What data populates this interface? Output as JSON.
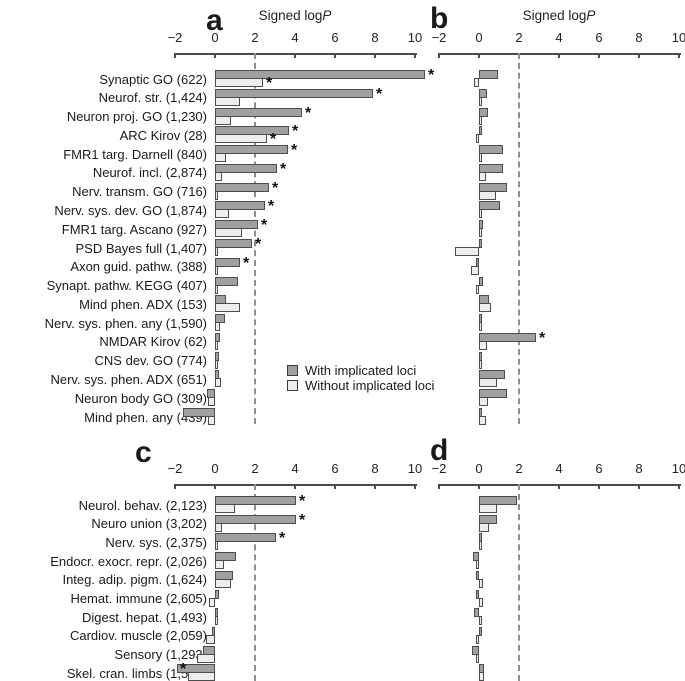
{
  "figure": {
    "panel_labels": {
      "a": "a",
      "b": "b",
      "c": "c",
      "d": "d"
    },
    "axis_title": "Signed logP"
  },
  "legend": {
    "with_label": "With implicated loci",
    "without_label": "Without implicated loci",
    "with_color": "#a0a0a0",
    "without_color": "#ededed",
    "border_color": "#4d4d4d",
    "threshold_line_color": "#8f8f8f"
  },
  "chart_data": [
    {
      "panel": "a",
      "type": "bar",
      "orientation": "horizontal",
      "xlabel": "Signed logP",
      "xlim": [
        -2,
        10
      ],
      "xticks": [
        -2,
        0,
        2,
        4,
        6,
        8,
        10
      ],
      "threshold_x": 2,
      "grid": false,
      "categories": [
        "Synaptic GO (622)",
        "Neurof. str. (1,424)",
        "Neuron proj. GO (1,230)",
        "ARC Kirov (28)",
        "FMR1 targ. Darnell (840)",
        "Neurof. incl. (2,874)",
        "Nerv. transm. GO (716)",
        "Nerv. sys. dev. GO (1,874)",
        "FMR1 targ. Ascano (927)",
        "PSD Bayes full (1,407)",
        "Axon guid. pathw. (388)",
        "Synapt. pathw. KEGG (407)",
        "Mind phen. ADX (153)",
        "Nerv. sys. phen. any (1,590)",
        "NMDAR Kirov (62)",
        "CNS dev. GO (774)",
        "Nerv. sys. phen. ADX (651)",
        "Neuron body GO (309)",
        "Mind phen. any (439)"
      ],
      "series": [
        {
          "name": "With implicated loci",
          "values": [
            10.5,
            7.9,
            4.35,
            3.7,
            3.65,
            3.1,
            2.7,
            2.5,
            2.15,
            1.85,
            1.25,
            1.15,
            0.55,
            0.5,
            0.25,
            0.2,
            0.2,
            -0.4,
            -1.6
          ],
          "stars": [
            true,
            true,
            true,
            true,
            true,
            true,
            true,
            true,
            true,
            true,
            true,
            false,
            false,
            false,
            false,
            false,
            false,
            false,
            false
          ]
        },
        {
          "name": "Without implicated loci",
          "values": [
            2.4,
            1.25,
            0.8,
            2.6,
            0.55,
            0.35,
            0.15,
            0.7,
            1.35,
            0.15,
            0.1,
            0.1,
            1.25,
            0.25,
            0.15,
            0.05,
            0.3,
            -0.35,
            -0.35
          ],
          "stars": [
            true,
            false,
            false,
            true,
            false,
            false,
            false,
            false,
            false,
            false,
            false,
            false,
            false,
            false,
            false,
            false,
            false,
            false,
            false
          ]
        }
      ]
    },
    {
      "panel": "b",
      "type": "bar",
      "orientation": "horizontal",
      "xlabel": "Signed logP",
      "xlim": [
        -2,
        10
      ],
      "xticks": [
        -2,
        0,
        2,
        4,
        6,
        8,
        10
      ],
      "threshold_x": 2,
      "grid": false,
      "categories": [
        "Synaptic GO (622)",
        "Neurof. str. (1,424)",
        "Neuron proj. GO (1,230)",
        "ARC Kirov (28)",
        "FMR1 targ. Darnell (840)",
        "Neurof. incl. (2,874)",
        "Nerv. transm. GO (716)",
        "Nerv. sys. dev. GO (1,874)",
        "FMR1 targ. Ascano (927)",
        "PSD Bayes full (1,407)",
        "Axon guid. pathw. (388)",
        "Synapt. pathw. KEGG (407)",
        "Mind phen. ADX (153)",
        "Nerv. sys. phen. any (1,590)",
        "NMDAR Kirov (62)",
        "CNS dev. GO (774)",
        "Nerv. sys. phen. ADX (651)",
        "Neuron body GO (309)",
        "Mind phen. any (439)"
      ],
      "series": [
        {
          "name": "With implicated loci",
          "values": [
            0.95,
            0.4,
            0.45,
            0.05,
            1.2,
            1.2,
            1.4,
            1.05,
            0.2,
            0.1,
            -0.1,
            0.2,
            0.5,
            0.1,
            2.85,
            0.15,
            1.3,
            1.4,
            0.15
          ],
          "stars": [
            false,
            false,
            false,
            false,
            false,
            false,
            false,
            false,
            false,
            false,
            false,
            false,
            false,
            false,
            true,
            false,
            false,
            false,
            false
          ]
        },
        {
          "name": "Without implicated loci",
          "values": [
            -0.25,
            0.05,
            0.05,
            -0.05,
            0.05,
            0.35,
            0.85,
            0.15,
            0.15,
            -1.2,
            -0.4,
            -0.05,
            0.6,
            0.1,
            0.4,
            0.05,
            0.9,
            0.45,
            0.35
          ],
          "stars": [
            false,
            false,
            false,
            false,
            false,
            false,
            false,
            false,
            false,
            false,
            false,
            false,
            false,
            false,
            false,
            false,
            false,
            false,
            false
          ]
        }
      ]
    },
    {
      "panel": "c",
      "type": "bar",
      "orientation": "horizontal",
      "xlabel": "",
      "xlim": [
        -2,
        10
      ],
      "xticks": [
        -2,
        0,
        2,
        4,
        6,
        8,
        10
      ],
      "threshold_x": 2,
      "grid": false,
      "categories": [
        "Neurol. behav. (2,123)",
        "Neuro union (3,202)",
        "Nerv. sys. (2,375)",
        "Endocr. exocr. repr. (2,026)",
        "Integ. adip. pigm. (1,624)",
        "Hemat. immune (2,605)",
        "Digest. hepat. (1,493)",
        "Cardiov. muscle (2,059)",
        "Sensory (1,293)",
        "Skel. cran. limbs (1,588)"
      ],
      "series": [
        {
          "name": "With implicated loci",
          "values": [
            4.05,
            4.05,
            3.05,
            1.05,
            0.9,
            0.2,
            0.15,
            -0.05,
            -0.6,
            -1.9
          ],
          "stars": [
            true,
            true,
            true,
            false,
            false,
            false,
            false,
            false,
            false,
            true
          ]
        },
        {
          "name": "Without implicated loci",
          "values": [
            1.0,
            0.35,
            0.1,
            0.45,
            0.8,
            -0.3,
            0.1,
            -0.45,
            -0.9,
            -1.35
          ],
          "stars": [
            false,
            false,
            false,
            false,
            false,
            false,
            false,
            false,
            false,
            false
          ]
        }
      ]
    },
    {
      "panel": "d",
      "type": "bar",
      "orientation": "horizontal",
      "xlabel": "",
      "xlim": [
        -2,
        10
      ],
      "xticks": [
        -2,
        0,
        2,
        4,
        6,
        8,
        10
      ],
      "threshold_x": 2,
      "grid": false,
      "categories": [
        "Neurol. behav. (2,123)",
        "Neuro union (3,202)",
        "Nerv. sys. (2,375)",
        "Endocr. exocr. repr. (2,026)",
        "Integ. adip. pigm. (1,624)",
        "Hemat. immune (2,605)",
        "Digest. hepat. (1,493)",
        "Cardiov. muscle (2,059)",
        "Sensory (1,293)",
        "Skel. cran. limbs (1,588)"
      ],
      "series": [
        {
          "name": "With implicated loci",
          "values": [
            1.9,
            0.9,
            0.1,
            -0.3,
            -0.05,
            -0.05,
            -0.25,
            0.05,
            -0.35,
            0.25
          ],
          "stars": [
            false,
            false,
            false,
            false,
            false,
            false,
            false,
            false,
            false,
            false
          ]
        },
        {
          "name": "Without implicated loci",
          "values": [
            0.9,
            0.5,
            0.05,
            -0.05,
            0.2,
            0.2,
            0.1,
            -0.1,
            -0.05,
            0.25
          ],
          "stars": [
            false,
            false,
            false,
            false,
            false,
            false,
            false,
            false,
            false,
            false
          ]
        }
      ]
    }
  ]
}
